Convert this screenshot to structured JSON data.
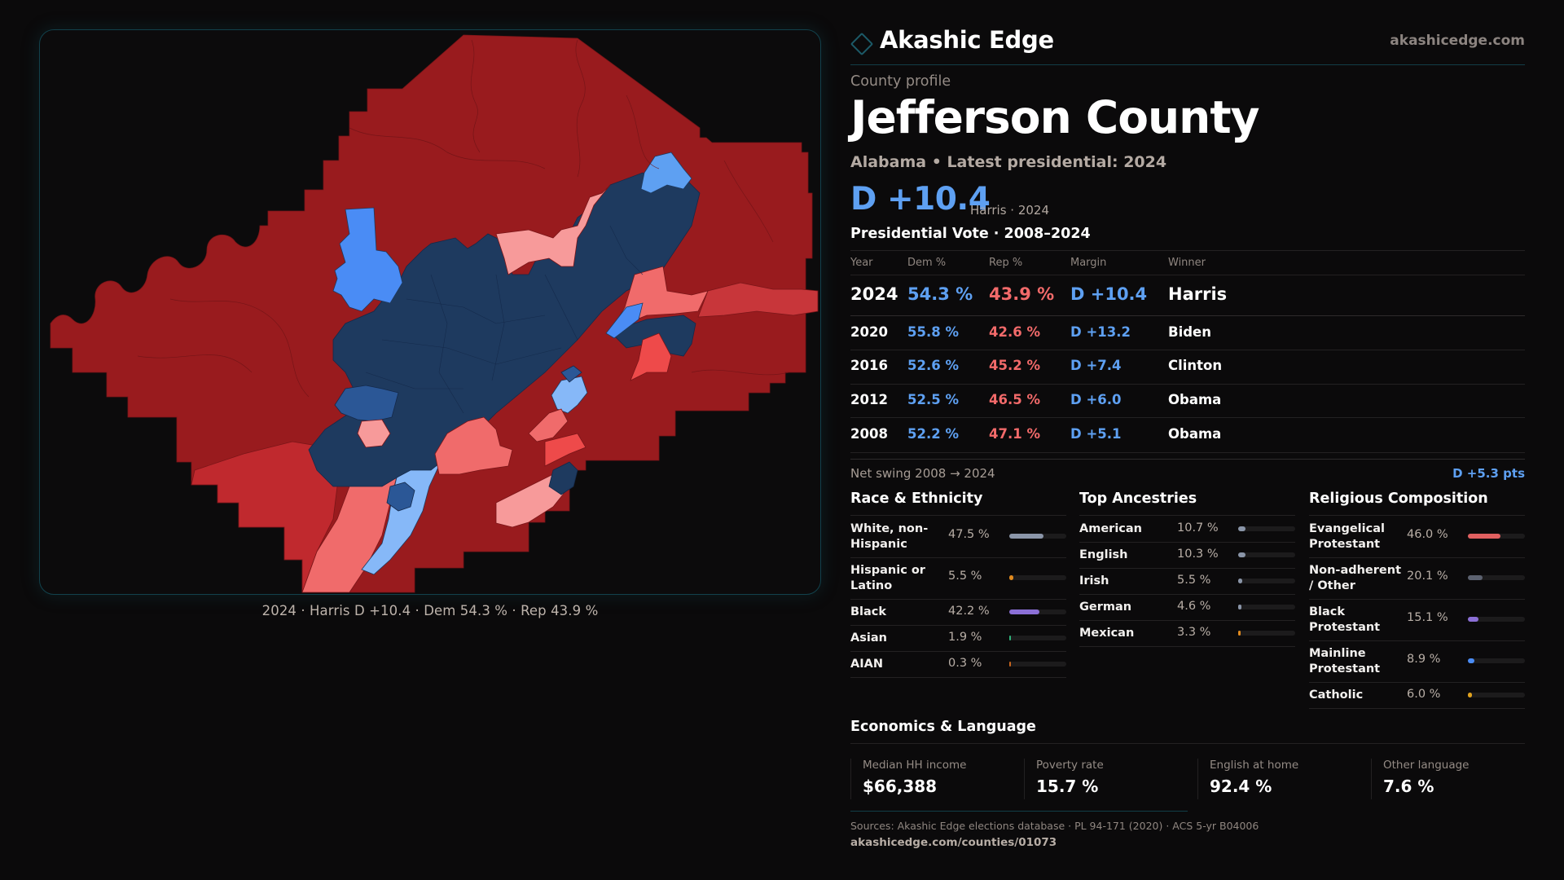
{
  "brand": {
    "name": "Akashic Edge",
    "url": "akashicedge.com",
    "logo_icon": "diamond-outline-icon"
  },
  "profile": {
    "eyebrow": "County profile",
    "title": "Jefferson County",
    "subtitle": "Alabama • Latest presidential: 2024",
    "headline_margin": "D +10.4",
    "headline_note": "Harris · 2024"
  },
  "colors": {
    "dem": "#5ea0f2",
    "rep": "#f26a6a",
    "accent": "#12414c",
    "map_strong_rep": "#991b1e",
    "map_rep": "#c0292e",
    "map_lean_rep": "#f06b6b",
    "map_tilt_rep": "#f79a9a",
    "map_rep_bright": "#ee4a4a",
    "map_strong_dem": "#1e3a5f",
    "map_dem": "#2b5796",
    "map_lean_dem": "#4a8cf5",
    "map_tilt_dem": "#86b8f8"
  },
  "vote_history": {
    "title": "Presidential Vote · 2008–2024",
    "columns": [
      "Year",
      "Dem %",
      "Rep %",
      "Margin",
      "Winner"
    ],
    "rows": [
      {
        "year": "2024",
        "dem": "54.3 %",
        "rep": "43.9 %",
        "margin": "D +10.4",
        "winner": "Harris"
      },
      {
        "year": "2020",
        "dem": "55.8 %",
        "rep": "42.6 %",
        "margin": "D +13.2",
        "winner": "Biden"
      },
      {
        "year": "2016",
        "dem": "52.6 %",
        "rep": "45.2 %",
        "margin": "D +7.4",
        "winner": "Clinton"
      },
      {
        "year": "2012",
        "dem": "52.5 %",
        "rep": "46.5 %",
        "margin": "D +6.0",
        "winner": "Obama"
      },
      {
        "year": "2008",
        "dem": "52.2 %",
        "rep": "47.1 %",
        "margin": "D +5.1",
        "winner": "Obama"
      }
    ],
    "net_swing_label": "Net swing 2008 → 2024",
    "net_swing_value": "D +5.3 pts"
  },
  "race": {
    "title": "Race & Ethnicity",
    "items": [
      {
        "label": "White, non-Hispanic",
        "value": "47.5 %",
        "pct": 47.5,
        "color": "#8a95a8"
      },
      {
        "label": "Hispanic or Latino",
        "value": "5.5 %",
        "pct": 5.5,
        "color": "#e08a1e"
      },
      {
        "label": "Black",
        "value": "42.2 %",
        "pct": 42.2,
        "color": "#8b6fd6"
      },
      {
        "label": "Asian",
        "value": "1.9 %",
        "pct": 1.9,
        "color": "#2fb37a"
      },
      {
        "label": "AIAN",
        "value": "0.3 %",
        "pct": 0.3,
        "color": "#c8651e"
      }
    ]
  },
  "ancestry": {
    "title": "Top Ancestries",
    "items": [
      {
        "label": "American",
        "value": "10.7 %",
        "pct": 10.7,
        "color": "#8a95a8"
      },
      {
        "label": "English",
        "value": "10.3 %",
        "pct": 10.3,
        "color": "#8a95a8"
      },
      {
        "label": "Irish",
        "value": "5.5 %",
        "pct": 5.5,
        "color": "#8a95a8"
      },
      {
        "label": "German",
        "value": "4.6 %",
        "pct": 4.6,
        "color": "#8a95a8"
      },
      {
        "label": "Mexican",
        "value": "3.3 %",
        "pct": 3.3,
        "color": "#e08a1e"
      }
    ]
  },
  "religion": {
    "title": "Religious Composition",
    "items": [
      {
        "label": "Evangelical Protestant",
        "value": "46.0 %",
        "pct": 46.0,
        "color": "#e06060"
      },
      {
        "label": "Non-adherent / Other",
        "value": "20.1 %",
        "pct": 20.1,
        "color": "#5c6270"
      },
      {
        "label": "Black Protestant",
        "value": "15.1 %",
        "pct": 15.1,
        "color": "#8b6fd6"
      },
      {
        "label": "Mainline Protestant",
        "value": "8.9 %",
        "pct": 8.9,
        "color": "#4a8cf5"
      },
      {
        "label": "Catholic",
        "value": "6.0 %",
        "pct": 6.0,
        "color": "#e0a21e"
      }
    ]
  },
  "economics": {
    "title": "Economics & Language",
    "items": [
      {
        "label": "Median HH income",
        "value": "$66,388"
      },
      {
        "label": "Poverty rate",
        "value": "15.7 %"
      },
      {
        "label": "English at home",
        "value": "92.4 %"
      },
      {
        "label": "Other language",
        "value": "7.6 %"
      }
    ]
  },
  "map": {
    "caption": "2024 · Harris D +10.4 · Dem 54.3 % · Rep 43.9 %"
  },
  "footer": {
    "sources": "Sources: Akashic Edge elections database · PL 94-171 (2020) · ACS 5-yr B04006",
    "url": "akashicedge.com/counties/01073"
  }
}
